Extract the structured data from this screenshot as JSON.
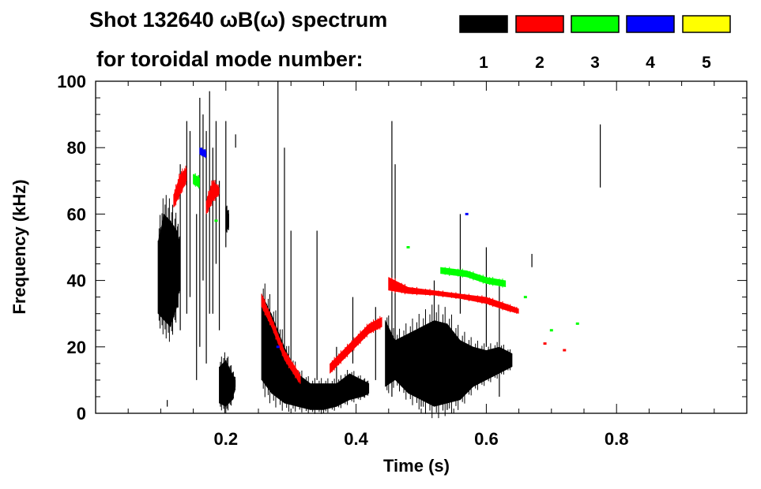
{
  "chart_data": {
    "type": "heatmap",
    "title": "Shot 132640 ωB(ω) spectrum",
    "subtitle": "for toroidal mode number:",
    "xlabel": "Time (s)",
    "ylabel": "Frequency (kHz)",
    "xlim": [
      0,
      1.0
    ],
    "ylim": [
      0,
      100
    ],
    "xticks": [
      {
        "v": 0.2,
        "label": "0.2"
      },
      {
        "v": 0.4,
        "label": "0.4"
      },
      {
        "v": 0.6,
        "label": "0.6"
      },
      {
        "v": 0.8,
        "label": "0.8"
      }
    ],
    "yticks": [
      {
        "v": 0,
        "label": "0"
      },
      {
        "v": 20,
        "label": "20"
      },
      {
        "v": 40,
        "label": "40"
      },
      {
        "v": 60,
        "label": "60"
      },
      {
        "v": 80,
        "label": "80"
      },
      {
        "v": 100,
        "label": "100"
      }
    ],
    "legend": {
      "placement": "top-right",
      "entries": [
        {
          "mode": "1",
          "color": "#000000"
        },
        {
          "mode": "2",
          "color": "#ff0000"
        },
        {
          "mode": "3",
          "color": "#00ff00"
        },
        {
          "mode": "4",
          "color": "#0000ff"
        },
        {
          "mode": "5",
          "color": "#ffff00"
        }
      ]
    },
    "bands": [
      {
        "mode": 1,
        "points": [
          [
            0.096,
            30,
            52
          ],
          [
            0.105,
            28,
            60
          ],
          [
            0.115,
            26,
            58
          ],
          [
            0.125,
            32,
            55
          ],
          [
            0.13,
            40,
            50
          ]
        ]
      },
      {
        "mode": 1,
        "points": [
          [
            0.19,
            3,
            14
          ],
          [
            0.2,
            2,
            16
          ],
          [
            0.21,
            4,
            12
          ],
          [
            0.215,
            8,
            10
          ]
        ]
      },
      {
        "mode": 1,
        "points": [
          [
            0.255,
            10,
            36
          ],
          [
            0.27,
            6,
            30
          ],
          [
            0.29,
            3,
            20
          ],
          [
            0.31,
            2,
            12
          ],
          [
            0.33,
            1,
            9
          ],
          [
            0.35,
            1,
            9
          ],
          [
            0.37,
            2,
            9
          ],
          [
            0.39,
            4,
            12
          ],
          [
            0.41,
            5,
            10
          ],
          [
            0.42,
            6,
            9
          ]
        ]
      },
      {
        "mode": 1,
        "points": [
          [
            0.445,
            8,
            28
          ],
          [
            0.46,
            10,
            22
          ],
          [
            0.48,
            6,
            24
          ],
          [
            0.5,
            4,
            26
          ],
          [
            0.52,
            2,
            28
          ],
          [
            0.54,
            3,
            27
          ],
          [
            0.56,
            4,
            22
          ],
          [
            0.58,
            8,
            20
          ],
          [
            0.6,
            10,
            19
          ],
          [
            0.62,
            12,
            20
          ],
          [
            0.64,
            14,
            18
          ]
        ]
      },
      {
        "mode": 1,
        "points": [
          [
            0.2,
            55,
            62
          ],
          [
            0.205,
            56,
            60
          ]
        ]
      },
      {
        "mode": 2,
        "points": [
          [
            0.255,
            32,
            36
          ],
          [
            0.27,
            26,
            29
          ],
          [
            0.29,
            16,
            19
          ],
          [
            0.31,
            10,
            13
          ],
          [
            0.315,
            9,
            11
          ]
        ]
      },
      {
        "mode": 2,
        "points": [
          [
            0.36,
            12,
            15
          ],
          [
            0.38,
            16,
            19
          ],
          [
            0.4,
            20,
            23
          ],
          [
            0.42,
            24,
            27
          ],
          [
            0.44,
            26,
            29
          ]
        ]
      },
      {
        "mode": 2,
        "points": [
          [
            0.45,
            37,
            41
          ],
          [
            0.48,
            36,
            38
          ],
          [
            0.52,
            35.5,
            37
          ],
          [
            0.56,
            34.5,
            36
          ],
          [
            0.6,
            33,
            35
          ],
          [
            0.63,
            31,
            33
          ],
          [
            0.65,
            30,
            31.5
          ]
        ]
      },
      {
        "mode": 2,
        "points": [
          [
            0.12,
            62,
            66
          ],
          [
            0.13,
            66,
            72
          ],
          [
            0.14,
            70,
            74
          ]
        ]
      },
      {
        "mode": 2,
        "points": [
          [
            0.17,
            60,
            64
          ],
          [
            0.18,
            64,
            70
          ],
          [
            0.19,
            66,
            68
          ]
        ]
      },
      {
        "mode": 3,
        "points": [
          [
            0.15,
            69,
            72
          ],
          [
            0.16,
            68,
            71
          ]
        ]
      },
      {
        "mode": 3,
        "points": [
          [
            0.53,
            42,
            44
          ],
          [
            0.57,
            41,
            43
          ],
          [
            0.6,
            39,
            41
          ],
          [
            0.63,
            38,
            40
          ]
        ]
      },
      {
        "mode": 4,
        "points": [
          [
            0.16,
            78,
            80
          ],
          [
            0.17,
            77,
            79
          ]
        ]
      }
    ],
    "streaks": [
      [
        0.11,
        2,
        4
      ],
      [
        0.13,
        25,
        75
      ],
      [
        0.14,
        30,
        88
      ],
      [
        0.145,
        35,
        85
      ],
      [
        0.155,
        10,
        60
      ],
      [
        0.16,
        20,
        95
      ],
      [
        0.165,
        40,
        90
      ],
      [
        0.17,
        15,
        85
      ],
      [
        0.175,
        30,
        97
      ],
      [
        0.18,
        30,
        80
      ],
      [
        0.185,
        45,
        88
      ],
      [
        0.19,
        25,
        70
      ],
      [
        0.2,
        50,
        88
      ],
      [
        0.215,
        80,
        84
      ],
      [
        0.28,
        5,
        100
      ],
      [
        0.29,
        10,
        80
      ],
      [
        0.3,
        12,
        55
      ],
      [
        0.34,
        10,
        55
      ],
      [
        0.37,
        2,
        20
      ],
      [
        0.395,
        15,
        35
      ],
      [
        0.43,
        10,
        32
      ],
      [
        0.455,
        5,
        88
      ],
      [
        0.46,
        20,
        75
      ],
      [
        0.5,
        2,
        10
      ],
      [
        0.52,
        20,
        40
      ],
      [
        0.54,
        1,
        6
      ],
      [
        0.56,
        30,
        60
      ],
      [
        0.6,
        20,
        50
      ],
      [
        0.62,
        5,
        40
      ],
      [
        0.67,
        44,
        48
      ],
      [
        0.775,
        68,
        87
      ]
    ],
    "specks": [
      {
        "mode": 2,
        "t": 0.69,
        "f": 21
      },
      {
        "mode": 2,
        "t": 0.72,
        "f": 19
      },
      {
        "mode": 3,
        "t": 0.74,
        "f": 27
      },
      {
        "mode": 3,
        "t": 0.7,
        "f": 25
      },
      {
        "mode": 3,
        "t": 0.48,
        "f": 50
      },
      {
        "mode": 4,
        "t": 0.57,
        "f": 60
      },
      {
        "mode": 3,
        "t": 0.66,
        "f": 35
      },
      {
        "mode": 4,
        "t": 0.28,
        "f": 20
      },
      {
        "mode": 3,
        "t": 0.185,
        "f": 58
      }
    ]
  }
}
